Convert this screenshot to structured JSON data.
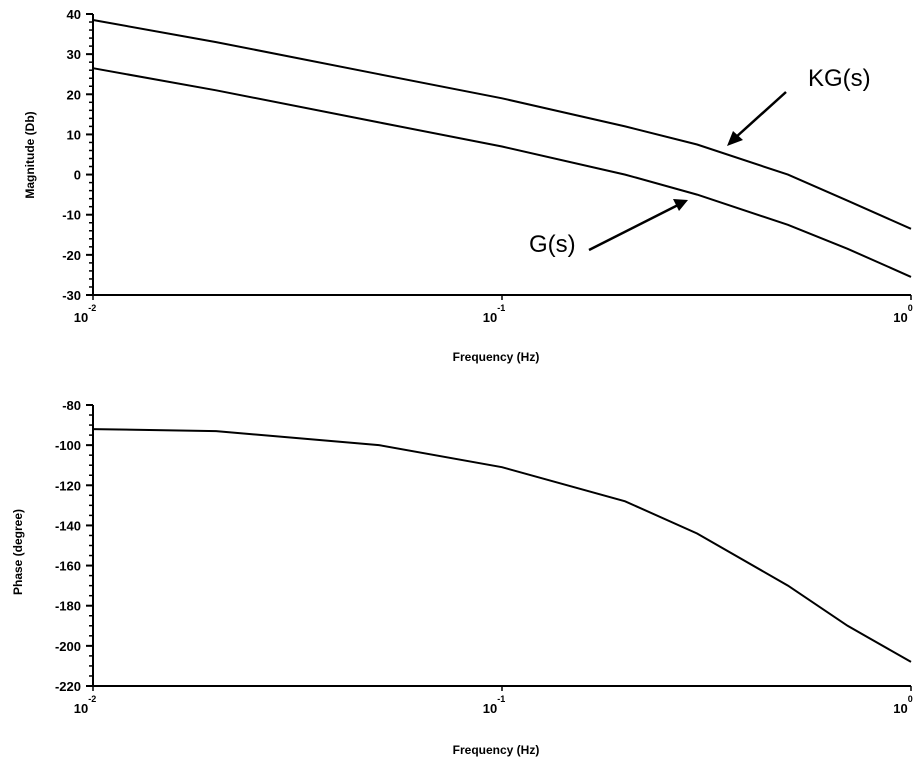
{
  "chart_data": [
    {
      "type": "line",
      "xscale": "log",
      "xlim": [
        0.01,
        1
      ],
      "ylim": [
        -30,
        40
      ],
      "ylabel": "Magnitude (Db)",
      "xlabel": "Frequency (Hz)",
      "yticks": [
        40,
        30,
        20,
        10,
        0,
        -10,
        -20,
        -30
      ],
      "xticks": [
        {
          "value": 0.01,
          "base": "10",
          "exp": "-2"
        },
        {
          "value": 0.1,
          "base": "10",
          "exp": "-1"
        },
        {
          "value": 1,
          "base": "10",
          "exp": "0"
        }
      ],
      "grid": false,
      "series": [
        {
          "name": "KG(s)",
          "x": [
            0.01,
            0.02,
            0.05,
            0.1,
            0.2,
            0.3,
            0.5,
            0.7,
            1.0
          ],
          "y": [
            38.5,
            33,
            25,
            19,
            12,
            7.5,
            0,
            -6.5,
            -13.5
          ]
        },
        {
          "name": "G(s)",
          "x": [
            0.01,
            0.02,
            0.05,
            0.1,
            0.2,
            0.3,
            0.5,
            0.7,
            1.0
          ],
          "y": [
            26.5,
            21,
            13,
            7,
            0,
            -5,
            -12.5,
            -18.5,
            -25.5
          ]
        }
      ],
      "annotations": [
        {
          "text": "KG(s)",
          "target_series": "KG(s)"
        },
        {
          "text": "G(s)",
          "target_series": "G(s)"
        }
      ]
    },
    {
      "type": "line",
      "xscale": "log",
      "xlim": [
        0.01,
        1
      ],
      "ylim": [
        -220,
        -80
      ],
      "ylabel": "Phase (degree)",
      "xlabel": "Frequency (Hz)",
      "yticks": [
        -80,
        -100,
        -120,
        -140,
        -160,
        -180,
        -200,
        -220
      ],
      "xticks": [
        {
          "value": 0.01,
          "base": "10",
          "exp": "-2"
        },
        {
          "value": 0.1,
          "base": "10",
          "exp": "-1"
        },
        {
          "value": 1,
          "base": "10",
          "exp": "0"
        }
      ],
      "grid": false,
      "series": [
        {
          "x": [
            0.01,
            0.02,
            0.05,
            0.1,
            0.2,
            0.3,
            0.5,
            0.7,
            1.0
          ],
          "y": [
            -92,
            -93,
            -100,
            -111,
            -128,
            -144,
            -170,
            -190,
            -208
          ]
        }
      ]
    }
  ]
}
